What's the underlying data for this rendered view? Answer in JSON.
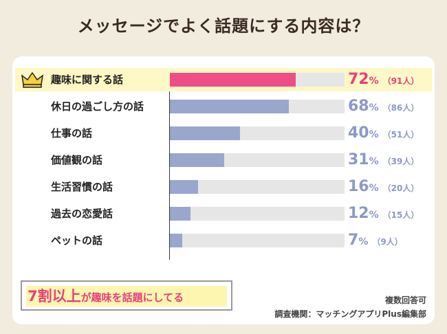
{
  "title": "メッセージでよく話題にする内容は？",
  "colors": {
    "highlight_bar": "#ee4d86",
    "normal_bar": "#9ba6cc",
    "highlight_text": "#e73f7d",
    "normal_text": "#8d99c5"
  },
  "chart_data": {
    "type": "bar",
    "orientation": "horizontal",
    "categories": [
      "趣味に関する話",
      "休日の過ごし方の話",
      "仕事の話",
      "価値観の話",
      "生活習慣の話",
      "過去の恋愛話",
      "ペットの話"
    ],
    "values": [
      72,
      68,
      40,
      31,
      16,
      12,
      7
    ],
    "counts": [
      "（91人）",
      "（86人）",
      "（51人）",
      "（39人）",
      "（20人）",
      "（15人）",
      "（9人）"
    ],
    "unit": "%",
    "xlim": [
      0,
      100
    ]
  },
  "callout": {
    "part1": "7割以上",
    "part2": "が趣味を話題にしてる"
  },
  "notes": {
    "multi": "複数回答可",
    "source": "調査機関：マッチングアプリPlus編集部"
  }
}
